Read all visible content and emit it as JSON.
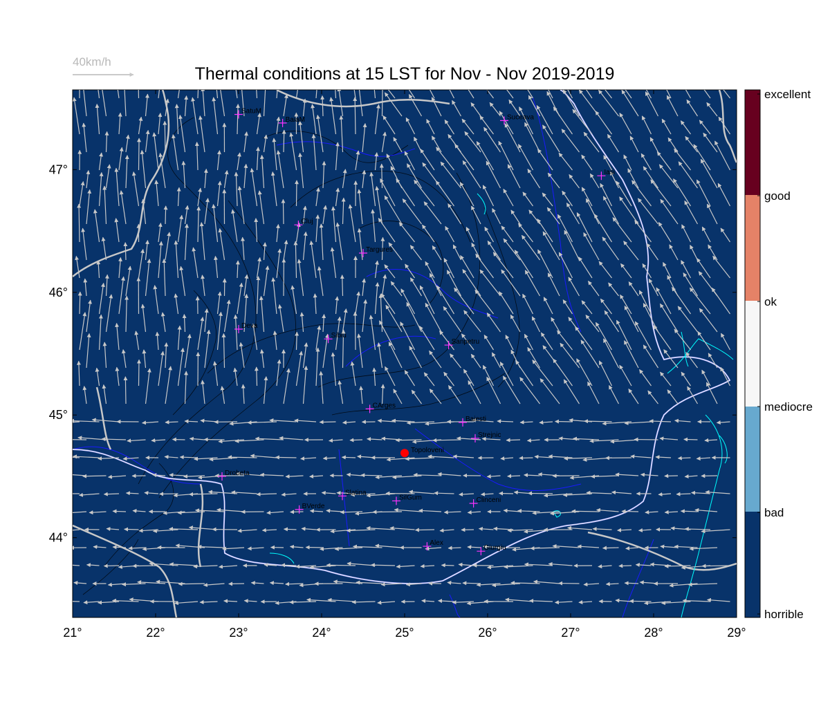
{
  "title": "Thermal conditions at 15 LST for Nov - Nov  2019-2019",
  "wind_scale": {
    "label": "40km/h",
    "color": "#b8b8b8"
  },
  "colors": {
    "background_class": "#08336a",
    "border": "#c8c8c8",
    "rivers": "#1a1aff",
    "water": "#00ffff",
    "arrows": "#c8c8c8",
    "city_marker": "#ff33ff",
    "highlight": "#ff0000",
    "contour": "#000000"
  },
  "map": {
    "lon_range": [
      21,
      29
    ],
    "lat_range": [
      43.35,
      47.65
    ],
    "x_ticks": [
      "21°",
      "22°",
      "23°",
      "24°",
      "25°",
      "26°",
      "27°",
      "28°",
      "29°"
    ],
    "y_ticks": [
      "44°",
      "45°",
      "46°",
      "47°"
    ]
  },
  "cities": [
    {
      "name": "SatuM",
      "lon": 23.0,
      "lat": 47.45
    },
    {
      "name": "BaiaM",
      "lon": 23.53,
      "lat": 47.38
    },
    {
      "name": "Suceava",
      "lon": 26.2,
      "lat": 47.4
    },
    {
      "name": "Iasi",
      "lon": 27.37,
      "lat": 46.95
    },
    {
      "name": "Cluj",
      "lon": 23.72,
      "lat": 46.55
    },
    {
      "name": "Targures",
      "lon": 24.5,
      "lat": 46.32
    },
    {
      "name": "Deva",
      "lon": 23.0,
      "lat": 45.7
    },
    {
      "name": "Sibiu",
      "lon": 24.08,
      "lat": 45.62
    },
    {
      "name": "Sanpetru",
      "lon": 25.53,
      "lat": 45.57
    },
    {
      "name": "CArges",
      "lon": 24.58,
      "lat": 45.05
    },
    {
      "name": "Baiesti",
      "lon": 25.7,
      "lat": 44.94
    },
    {
      "name": "Strejnic",
      "lon": 25.85,
      "lat": 44.81
    },
    {
      "name": "Drobeta",
      "lon": 22.8,
      "lat": 44.5
    },
    {
      "name": "Slatina",
      "lon": 24.25,
      "lat": 44.34
    },
    {
      "name": "SilGum",
      "lon": 24.9,
      "lat": 44.3
    },
    {
      "name": "Clinceni",
      "lon": 25.83,
      "lat": 44.28
    },
    {
      "name": "BVerde",
      "lon": 23.73,
      "lat": 44.23
    },
    {
      "name": "Alex",
      "lon": 25.27,
      "lat": 43.93
    },
    {
      "name": "Giurgiu",
      "lon": 25.92,
      "lat": 43.89
    }
  ],
  "highlight_station": {
    "name": "Topoloveni",
    "lon": 25.0,
    "lat": 44.69
  },
  "legend": {
    "classes": [
      {
        "label": "excellent",
        "color": "#67001f"
      },
      {
        "label": "good",
        "color": "#e58267"
      },
      {
        "label": "ok",
        "color": "#f7f7f7"
      },
      {
        "label": "mediocre",
        "color": "#f7f7f7"
      },
      {
        "label": "bad",
        "color": "#67a9cf"
      },
      {
        "label": "horrible",
        "color": "#08336a"
      }
    ]
  }
}
